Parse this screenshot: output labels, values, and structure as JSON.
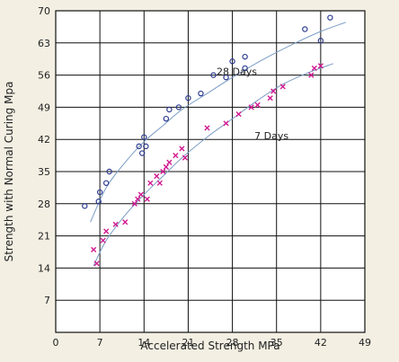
{
  "chart_data": {
    "type": "scatter",
    "title": "",
    "xlabel": "Accelerated Strength MPa",
    "ylabel": "Strength with Normal Curing Mpa",
    "xlim": [
      0,
      49
    ],
    "ylim": [
      0,
      70
    ],
    "xticks": [
      0,
      7,
      14,
      21,
      28,
      35,
      42,
      49
    ],
    "yticks": [
      7,
      14,
      21,
      28,
      35,
      42,
      49,
      56,
      63,
      70
    ],
    "grid": true,
    "legend": "none",
    "series": [
      {
        "name": "28 Days",
        "marker": "circle",
        "color": "#2b3a8f",
        "points": [
          [
            4.6,
            27.5
          ],
          [
            6.8,
            28.5
          ],
          [
            7.0,
            30.5
          ],
          [
            8.0,
            32.5
          ],
          [
            8.5,
            35.0
          ],
          [
            13.2,
            40.5
          ],
          [
            13.7,
            39.0
          ],
          [
            14.0,
            42.5
          ],
          [
            14.3,
            40.5
          ],
          [
            17.5,
            46.5
          ],
          [
            18.0,
            48.5
          ],
          [
            19.5,
            49.0
          ],
          [
            21.0,
            51.0
          ],
          [
            23.0,
            52.0
          ],
          [
            25.0,
            56.0
          ],
          [
            27.0,
            55.5
          ],
          [
            28.0,
            59.0
          ],
          [
            30.0,
            57.5
          ],
          [
            30.0,
            60.0
          ],
          [
            39.5,
            66.0
          ],
          [
            42.0,
            63.5
          ],
          [
            43.5,
            68.5
          ]
        ],
        "trend": [
          [
            5.5,
            24.0
          ],
          [
            8.0,
            31.5
          ],
          [
            11.0,
            37.0
          ],
          [
            14.0,
            41.5
          ],
          [
            17.0,
            45.0
          ],
          [
            20.0,
            48.5
          ],
          [
            24.0,
            52.0
          ],
          [
            28.0,
            55.5
          ],
          [
            33.0,
            59.5
          ],
          [
            38.0,
            63.0
          ],
          [
            42.0,
            65.5
          ],
          [
            46.0,
            67.5
          ]
        ]
      },
      {
        "name": "7 Days",
        "marker": "x",
        "color": "#d01890",
        "points": [
          [
            6.0,
            18.0
          ],
          [
            6.5,
            15.0
          ],
          [
            7.5,
            20.0
          ],
          [
            8.0,
            22.0
          ],
          [
            9.5,
            23.5
          ],
          [
            11.0,
            24.0
          ],
          [
            12.5,
            28.0
          ],
          [
            13.0,
            29.0
          ],
          [
            13.5,
            30.0
          ],
          [
            14.5,
            29.0
          ],
          [
            15.0,
            32.5
          ],
          [
            16.0,
            34.0
          ],
          [
            16.5,
            32.5
          ],
          [
            17.0,
            35.0
          ],
          [
            17.5,
            36.0
          ],
          [
            18.0,
            37.0
          ],
          [
            19.0,
            38.5
          ],
          [
            20.0,
            40.0
          ],
          [
            20.5,
            38.0
          ],
          [
            24.0,
            44.5
          ],
          [
            27.0,
            45.5
          ],
          [
            29.0,
            47.5
          ],
          [
            31.0,
            49.0
          ],
          [
            32.0,
            49.5
          ],
          [
            34.0,
            51.0
          ],
          [
            34.5,
            52.5
          ],
          [
            36.0,
            53.5
          ],
          [
            40.5,
            56.0
          ],
          [
            41.0,
            57.5
          ],
          [
            42.0,
            58.0
          ]
        ],
        "trend": [
          [
            6.0,
            14.5
          ],
          [
            8.0,
            20.0
          ],
          [
            11.0,
            25.5
          ],
          [
            14.0,
            30.0
          ],
          [
            17.0,
            34.0
          ],
          [
            20.0,
            38.0
          ],
          [
            24.0,
            42.5
          ],
          [
            28.0,
            46.5
          ],
          [
            32.0,
            50.5
          ],
          [
            36.0,
            54.0
          ],
          [
            40.0,
            56.5
          ],
          [
            44.0,
            58.5
          ]
        ]
      }
    ],
    "annotations": [
      {
        "text": "28 Days",
        "x": 25.5,
        "y": 56.0
      },
      {
        "text": "7 Days",
        "x": 31.5,
        "y": 42.0
      }
    ]
  }
}
